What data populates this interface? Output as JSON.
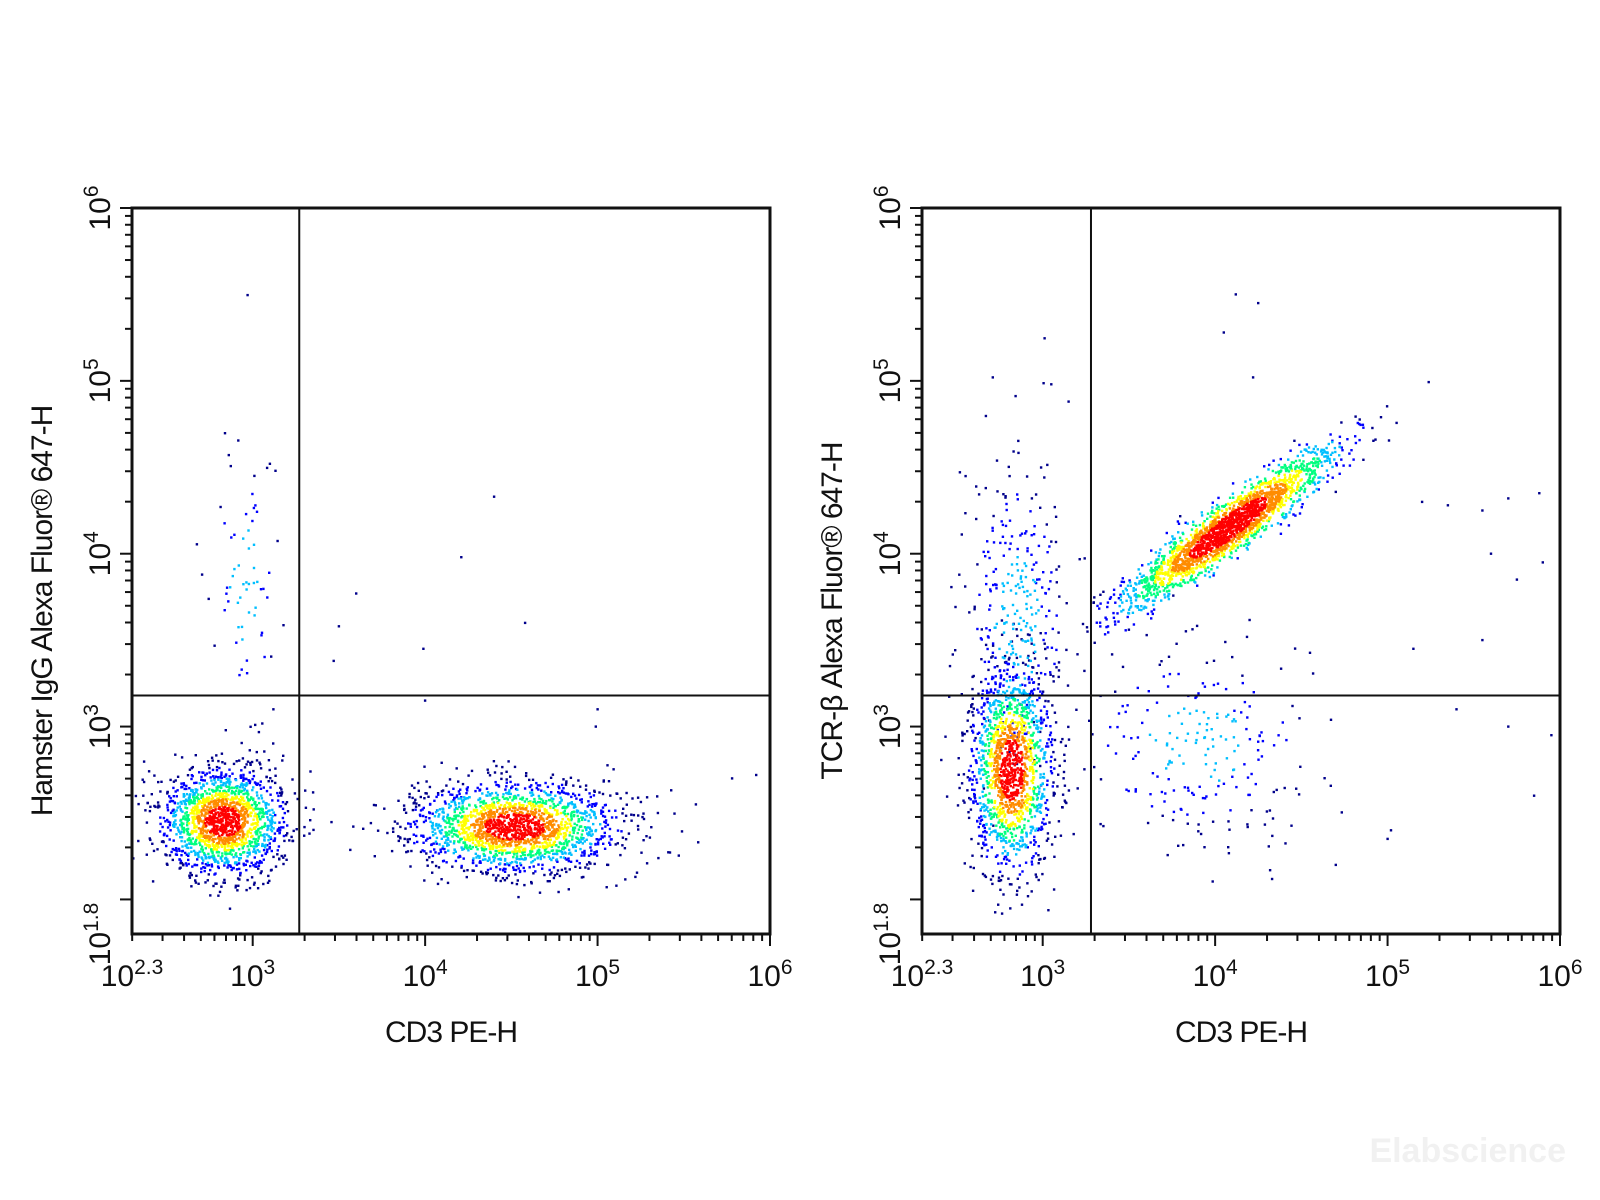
{
  "watermark": "Elabscience",
  "colors": {
    "axis": "#111111",
    "gate_line": "#111111",
    "density_scale": [
      "#00008b",
      "#0000ff",
      "#00bfff",
      "#00ff7f",
      "#ffff00",
      "#ff8c00",
      "#ff0000"
    ]
  },
  "chart_data": [
    {
      "type": "scatter",
      "subtype": "flow-cytometry-density-dot-plot",
      "xlabel": "CD3 PE-H",
      "ylabel": "Hamster IgG Alexa Fluor® 647-H",
      "x_scale": "log",
      "y_scale": "log",
      "xlim_log10": [
        2.3,
        6
      ],
      "ylim_log10": [
        1.8,
        6
      ],
      "x_ticks": [
        {
          "base": "10",
          "exp": "2.3",
          "log10": 2.3
        },
        {
          "base": "10",
          "exp": "3",
          "log10": 3
        },
        {
          "base": "10",
          "exp": "4",
          "log10": 4
        },
        {
          "base": "10",
          "exp": "5",
          "log10": 5
        },
        {
          "base": "10",
          "exp": "6",
          "log10": 6
        }
      ],
      "y_ticks": [
        {
          "base": "10",
          "exp": "1.8",
          "log10": 1.8
        },
        {
          "base": "10",
          "exp": "3",
          "log10": 3
        },
        {
          "base": "10",
          "exp": "4",
          "log10": 4
        },
        {
          "base": "10",
          "exp": "5",
          "log10": 5
        },
        {
          "base": "10",
          "exp": "6",
          "log10": 6
        }
      ],
      "quadrant_gate_log10": {
        "x": 3.27,
        "y": 3.18
      },
      "populations": [
        {
          "center_log10": [
            2.83,
            2.45
          ],
          "spread_log10": [
            0.18,
            0.15
          ],
          "count": 1700
        },
        {
          "center_log10": [
            4.52,
            2.42
          ],
          "spread_log10": [
            0.3,
            0.13
          ],
          "count": 1900
        },
        {
          "center_log10": [
            2.95,
            3.8
          ],
          "spread_log10": [
            0.1,
            0.45
          ],
          "count": 70
        }
      ],
      "sparse_points_log10": [
        [
          4.4,
          4.33
        ],
        [
          4.21,
          3.98
        ],
        [
          3.6,
          3.77
        ],
        [
          3.99,
          3.45
        ],
        [
          4.58,
          3.6
        ],
        [
          3.5,
          3.58
        ],
        [
          3.47,
          3.38
        ],
        [
          4.0,
          3.15
        ],
        [
          4.99,
          3.0
        ],
        [
          5.0,
          3.1
        ],
        [
          5.92,
          2.72
        ],
        [
          5.78,
          2.7
        ],
        [
          5.57,
          2.55
        ],
        [
          5.35,
          2.5
        ],
        [
          3.12,
          3.1
        ],
        [
          3.01,
          4.45
        ],
        [
          3.1,
          4.52
        ]
      ]
    },
    {
      "type": "scatter",
      "subtype": "flow-cytometry-density-dot-plot",
      "xlabel": "CD3 PE-H",
      "ylabel": "TCR-β Alexa Fluor® 647-H",
      "x_scale": "log",
      "y_scale": "log",
      "xlim_log10": [
        2.3,
        6
      ],
      "ylim_log10": [
        1.8,
        6
      ],
      "x_ticks": [
        {
          "base": "10",
          "exp": "2.3",
          "log10": 2.3
        },
        {
          "base": "10",
          "exp": "3",
          "log10": 3
        },
        {
          "base": "10",
          "exp": "4",
          "log10": 4
        },
        {
          "base": "10",
          "exp": "5",
          "log10": 5
        },
        {
          "base": "10",
          "exp": "6",
          "log10": 6
        }
      ],
      "y_ticks": [
        {
          "base": "10",
          "exp": "1.8",
          "log10": 1.8
        },
        {
          "base": "10",
          "exp": "3",
          "log10": 3
        },
        {
          "base": "10",
          "exp": "4",
          "log10": 4
        },
        {
          "base": "10",
          "exp": "5",
          "log10": 5
        },
        {
          "base": "10",
          "exp": "6",
          "log10": 6
        }
      ],
      "quadrant_gate_log10": {
        "x": 3.28,
        "y": 3.18
      },
      "populations": [
        {
          "center_log10": [
            2.82,
            2.75
          ],
          "spread_log10": [
            0.12,
            0.3
          ],
          "count": 1500
        },
        {
          "center_log10": [
            4.08,
            4.15
          ],
          "spread_log10": [
            0.3,
            0.22
          ],
          "count": 2200,
          "correlated": true
        },
        {
          "center_log10": [
            2.85,
            3.6
          ],
          "spread_log10": [
            0.16,
            0.5
          ],
          "count": 320
        },
        {
          "center_log10": [
            3.9,
            2.9
          ],
          "spread_log10": [
            0.35,
            0.3
          ],
          "count": 230
        }
      ],
      "sparse_points_log10": [
        [
          4.12,
          5.5
        ],
        [
          4.25,
          5.45
        ],
        [
          4.05,
          5.28
        ],
        [
          4.22,
          5.02
        ],
        [
          3.05,
          4.98
        ],
        [
          3.15,
          4.88
        ],
        [
          5.2,
          4.3
        ],
        [
          5.35,
          4.28
        ],
        [
          5.55,
          4.25
        ],
        [
          5.7,
          4.32
        ],
        [
          5.88,
          4.35
        ],
        [
          5.6,
          4.0
        ],
        [
          5.75,
          3.85
        ],
        [
          5.9,
          3.95
        ],
        [
          5.15,
          3.45
        ],
        [
          5.55,
          3.5
        ],
        [
          5.4,
          3.1
        ],
        [
          5.7,
          3.0
        ],
        [
          5.95,
          2.95
        ],
        [
          5.85,
          2.6
        ],
        [
          5.0,
          2.35
        ],
        [
          4.7,
          2.2
        ],
        [
          5.02,
          2.4
        ]
      ]
    }
  ]
}
